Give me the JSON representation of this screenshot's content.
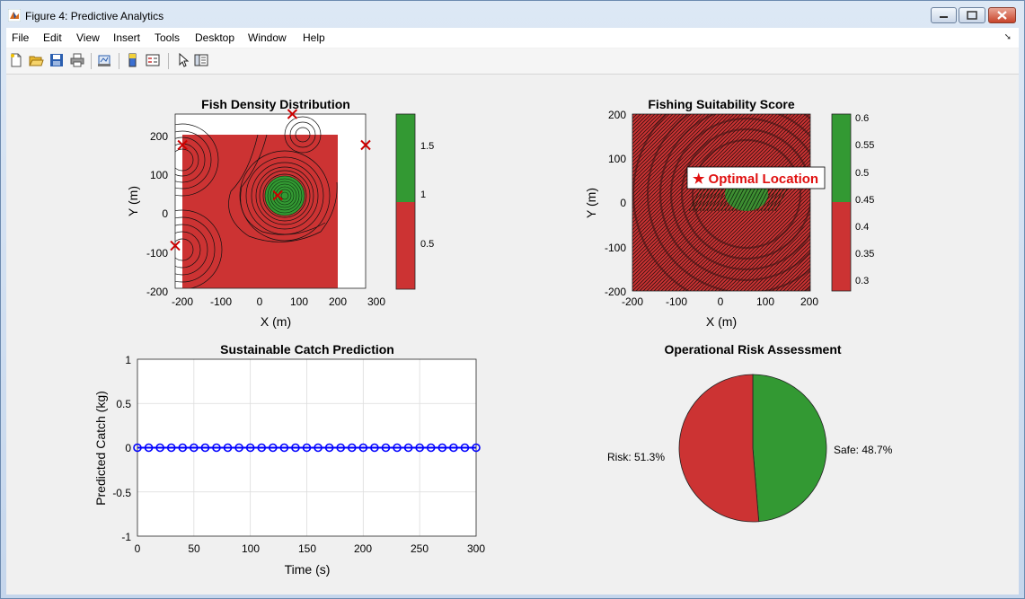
{
  "window": {
    "title": "Figure 4: Predictive Analytics"
  },
  "menu": [
    "File",
    "Edit",
    "View",
    "Insert",
    "Tools",
    "Desktop",
    "Window",
    "Help"
  ],
  "toolbar": {
    "icons": [
      "new-figure-icon",
      "open-file-icon",
      "save-icon",
      "print-icon",
      "link-plot-icon",
      "insert-colorbar-icon",
      "insert-legend-icon",
      "edit-plot-icon",
      "property-inspector-icon"
    ]
  },
  "colors": {
    "red": "#cc3333",
    "green": "#339933",
    "blue": "#0000ff",
    "marker": "#cc0000"
  },
  "plots": {
    "density": {
      "title": "Fish Density Distribution",
      "xlabel": "X (m)",
      "ylabel": "Y (m)",
      "xticks": [
        "-200",
        "-100",
        "0",
        "100",
        "200",
        "300"
      ],
      "yticks": [
        "200",
        "100",
        "0",
        "-100",
        "-200"
      ],
      "colorbar_ticks": [
        "1.5",
        "1",
        "0.5"
      ],
      "markers": [
        {
          "x": 100,
          "y": 250
        },
        {
          "x": -200,
          "y": 170
        },
        {
          "x": 300,
          "y": 170
        },
        {
          "x": 60,
          "y": 40
        },
        {
          "x": -220,
          "y": -90
        }
      ]
    },
    "suitability": {
      "title": "Fishing Suitability Score",
      "xlabel": "X (m)",
      "ylabel": "Y (m)",
      "xticks": [
        "-200",
        "-100",
        "0",
        "100",
        "200"
      ],
      "yticks": [
        "200",
        "100",
        "0",
        "-100",
        "-200"
      ],
      "colorbar_ticks": [
        "0.6",
        "0.55",
        "0.5",
        "0.45",
        "0.4",
        "0.35",
        "0.3"
      ],
      "annotation": "★ Optimal Location"
    },
    "catch": {
      "title": "Sustainable Catch Prediction",
      "xlabel": "Time (s)",
      "ylabel": "Predicted Catch (kg)",
      "xticks": [
        "0",
        "50",
        "100",
        "150",
        "200",
        "250",
        "300"
      ],
      "yticks": [
        "1",
        "0.5",
        "0",
        "-0.5",
        "-1"
      ]
    },
    "risk": {
      "title": "Operational Risk Assessment",
      "labels": [
        "Safe: 48.7%",
        "Risk: 51.3%"
      ]
    }
  },
  "chart_data": [
    {
      "type": "heatmap",
      "title": "Fish Density Distribution",
      "xlabel": "X (m)",
      "ylabel": "Y (m)",
      "xlim": [
        -220,
        300
      ],
      "ylim": [
        -200,
        250
      ],
      "clim": [
        0,
        1.8
      ],
      "colormap": [
        "#cc3333",
        "#339933"
      ],
      "markers": [
        [
          100,
          250
        ],
        [
          -200,
          170
        ],
        [
          300,
          170
        ],
        [
          60,
          40
        ],
        [
          -220,
          -90
        ]
      ]
    },
    {
      "type": "heatmap",
      "title": "Fishing Suitability Score",
      "xlabel": "X (m)",
      "ylabel": "Y (m)",
      "xlim": [
        -200,
        200
      ],
      "ylim": [
        -200,
        200
      ],
      "clim": [
        0.28,
        0.61
      ],
      "colormap": [
        "#cc3333",
        "#339933"
      ],
      "annotation": {
        "text": "★ Optimal Location",
        "x": 60,
        "y": 40
      }
    },
    {
      "type": "line",
      "title": "Sustainable Catch Prediction",
      "xlabel": "Time (s)",
      "ylabel": "Predicted Catch (kg)",
      "xlim": [
        0,
        300
      ],
      "ylim": [
        -1,
        1
      ],
      "grid": true,
      "x": [
        0,
        10,
        20,
        30,
        40,
        50,
        60,
        70,
        80,
        90,
        100,
        110,
        120,
        130,
        140,
        150,
        160,
        170,
        180,
        190,
        200,
        210,
        220,
        230,
        240,
        250,
        260,
        270,
        280,
        290,
        300
      ],
      "values": [
        0,
        0,
        0,
        0,
        0,
        0,
        0,
        0,
        0,
        0,
        0,
        0,
        0,
        0,
        0,
        0,
        0,
        0,
        0,
        0,
        0,
        0,
        0,
        0,
        0,
        0,
        0,
        0,
        0,
        0,
        0
      ]
    },
    {
      "type": "pie",
      "title": "Operational Risk Assessment",
      "categories": [
        "Safe",
        "Risk"
      ],
      "values": [
        48.7,
        51.3
      ],
      "labels": [
        "Safe: 48.7%",
        "Risk: 51.3%"
      ]
    }
  ]
}
